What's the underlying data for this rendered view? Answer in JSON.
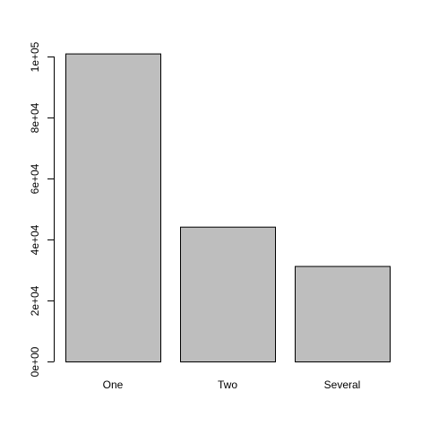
{
  "chart_data": {
    "type": "bar",
    "categories": [
      "One",
      "Two",
      "Several"
    ],
    "values": [
      101000,
      44200,
      31300
    ],
    "ylim": [
      0,
      100000
    ],
    "yticks": [
      0,
      20000,
      40000,
      60000,
      80000,
      100000
    ],
    "ytick_labels": [
      "0e+00",
      "2e+04",
      "4e+04",
      "6e+04",
      "8e+04",
      "1e+05"
    ],
    "title": "",
    "xlabel": "",
    "ylabel": "",
    "grid": false,
    "bar_fill": "#bebebe",
    "bar_stroke": "#000000"
  }
}
